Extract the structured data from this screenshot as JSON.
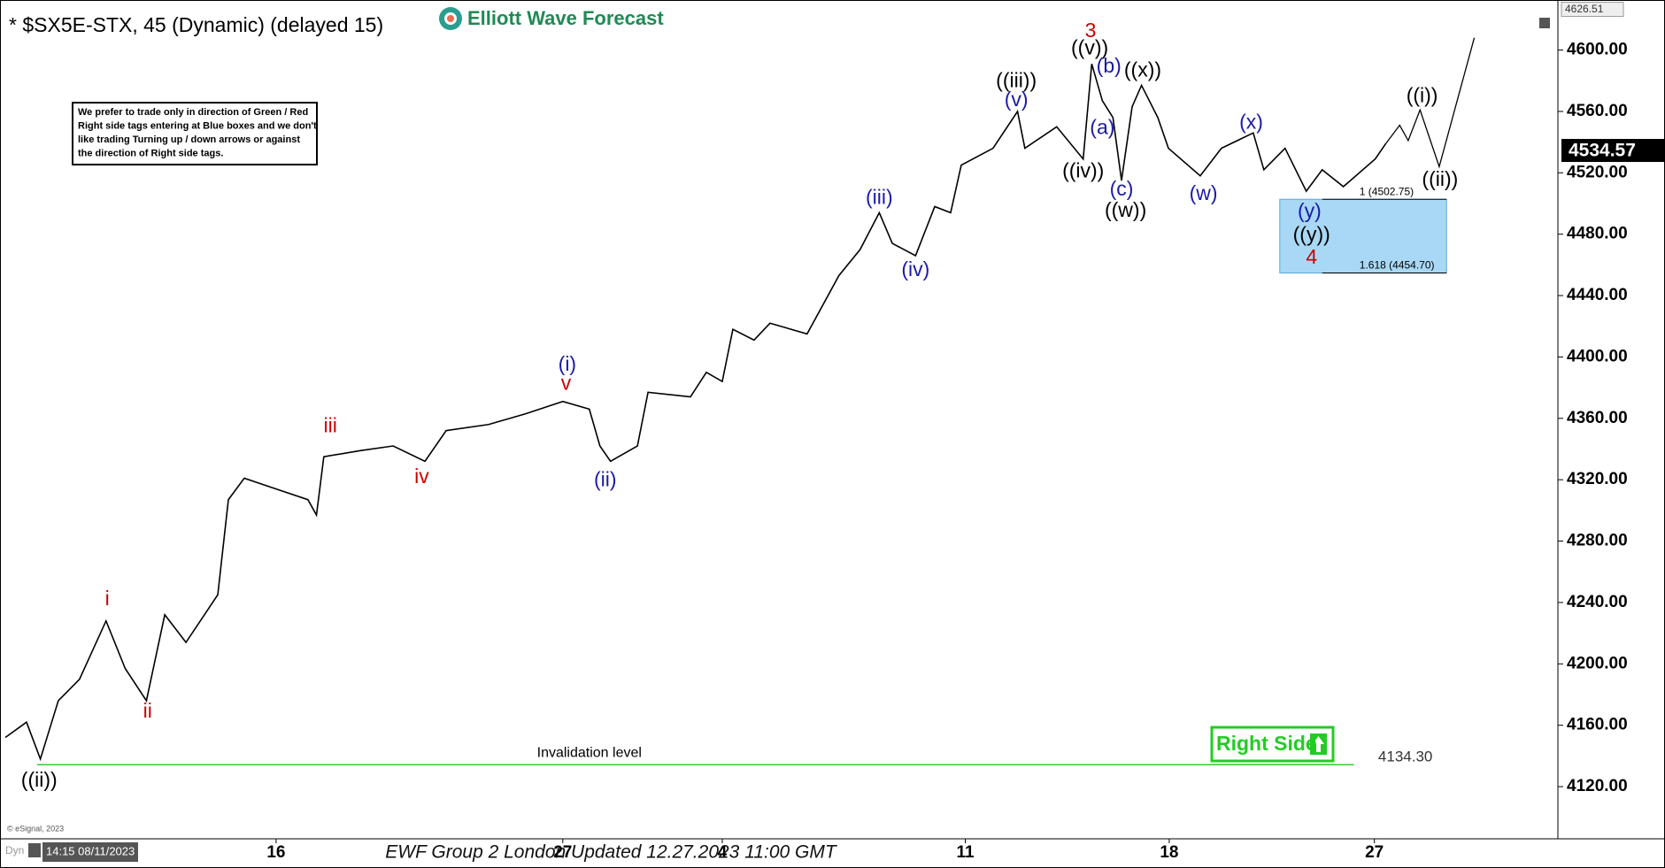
{
  "chart_data": {
    "type": "line",
    "title": "* $SX5E-STX, 45 (Dynamic) (delayed 15)",
    "logo": "Elliott Wave Forecast",
    "note": [
      "We prefer to trade only in direction of Green / Red",
      "Right side tags entering at Blue boxes and we don't",
      "like trading Turning up / down arrows or against",
      "the direction of Right side tags."
    ],
    "xlim": [
      0,
      38.2
    ],
    "ylim": [
      4086,
      4628
    ],
    "yticks": [
      {
        "value": 4120,
        "label": "4120.00"
      },
      {
        "value": 4160,
        "label": "4160.00"
      },
      {
        "value": 4200,
        "label": "4200.00"
      },
      {
        "value": 4240,
        "label": "4240.00"
      },
      {
        "value": 4280,
        "label": "4280.00"
      },
      {
        "value": 4320,
        "label": "4320.00"
      },
      {
        "value": 4360,
        "label": "4360.00"
      },
      {
        "value": 4400,
        "label": "4400.00"
      },
      {
        "value": 4440,
        "label": "4440.00"
      },
      {
        "value": 4480,
        "label": "4480.00"
      },
      {
        "value": 4520,
        "label": "4520.00"
      },
      {
        "value": 4560,
        "label": "4560.00"
      },
      {
        "value": 4600,
        "label": "4600.00"
      }
    ],
    "xticks": [
      {
        "value": 6.77,
        "label": "16"
      },
      {
        "value": 13.8,
        "label": "27"
      },
      {
        "value": 17.71,
        "label": "4"
      },
      {
        "value": 23.67,
        "label": "11"
      },
      {
        "value": 28.67,
        "label": "18"
      },
      {
        "value": 33.7,
        "label": "27"
      }
    ],
    "series": [
      {
        "name": "price",
        "color": "#000000",
        "x": [
          0.13,
          0.65,
          0.99,
          1.43,
          1.95,
          2.6,
          3.07,
          3.59,
          4.04,
          4.56,
          5.34,
          5.6,
          5.99,
          6.77,
          7.55,
          7.76,
          7.94,
          8.85,
          9.64,
          10.42,
          10.94,
          11.98,
          12.89,
          13.8,
          14.45,
          14.71,
          14.97,
          15.63,
          15.89,
          16.93,
          17.32,
          17.71,
          17.97,
          18.49,
          18.88,
          19.79,
          20.57,
          21.09,
          21.56,
          21.88,
          22.45,
          22.92,
          23.31,
          23.57,
          24.35,
          24.95,
          25.13,
          25.91,
          26.56,
          26.77,
          27.03,
          27.29,
          27.5,
          27.76,
          27.99,
          28.39,
          28.65,
          29.43,
          29.95,
          30.73,
          30.99,
          31.51,
          32.03,
          32.42,
          32.94,
          33.72,
          33.98
        ],
        "values": [
          4152,
          4162,
          4138,
          4176,
          4190,
          4228,
          4197,
          4176,
          4232,
          4214,
          4245,
          4307,
          4321,
          4314,
          4307,
          4297,
          4335,
          4339,
          4342,
          4332,
          4352,
          4356,
          4363,
          4371,
          4366,
          4342,
          4332,
          4342,
          4377,
          4374,
          4390,
          4384,
          4418,
          4411,
          4422,
          4415,
          4453,
          4470,
          4494,
          4474,
          4466,
          4498,
          4494,
          4525,
          4536,
          4560,
          4536,
          4550,
          4529,
          4591,
          4567,
          4556,
          4515,
          4563,
          4577,
          4556,
          4536,
          4518,
          4536,
          4546,
          4522,
          4536,
          4508,
          4522,
          4511,
          4529,
          4539
        ]
      },
      {
        "name": "projection",
        "color": "#000000",
        "x": [
          33.98,
          34.32,
          34.53,
          34.82,
          35.29,
          36.15
        ],
        "values": [
          4539,
          4551,
          4541,
          4561,
          4524,
          4608
        ]
      }
    ],
    "last_price": {
      "value": 4534.57,
      "label": "4534.57"
    },
    "top_price": {
      "value": 4626.51,
      "label": "4626.51"
    },
    "invalidation": {
      "label": "Invalidation level",
      "value": 4134.3,
      "value_label": "4134.30",
      "color": "#33cc33",
      "x_range": [
        0.91,
        33.2
      ]
    },
    "blue_box": {
      "x_range": [
        31.38,
        35.47
      ],
      "color": "#a8d8f5",
      "levels": [
        {
          "value": 4502.75,
          "label": "1 (4502.75)"
        },
        {
          "value": 4454.7,
          "label": "1.618 (4454.70)"
        }
      ]
    },
    "annotations": [
      {
        "text": "((ii))",
        "x": 0.96,
        "y": 4123.4,
        "color": "#000000"
      },
      {
        "text": "i",
        "x": 2.63,
        "y": 4241.7,
        "color": "#cc0000"
      },
      {
        "text": "ii",
        "x": 3.62,
        "y": 4168.4,
        "color": "#cc0000"
      },
      {
        "text": "iii",
        "x": 8.1,
        "y": 4354.4,
        "color": "#cc0000"
      },
      {
        "text": "iv",
        "x": 10.34,
        "y": 4321.2,
        "color": "#cc0000"
      },
      {
        "text": "v",
        "x": 13.88,
        "y": 4382.1,
        "color": "#cc0000"
      },
      {
        "text": "(i)",
        "x": 13.91,
        "y": 4394.6,
        "color": "#1a1aa8"
      },
      {
        "text": "(ii)",
        "x": 14.84,
        "y": 4319.2,
        "color": "#1a1aa8"
      },
      {
        "text": "(iii)",
        "x": 21.56,
        "y": 4503.2,
        "color": "#1a1aa8"
      },
      {
        "text": "(iv)",
        "x": 22.45,
        "y": 4456.1,
        "color": "#1a1aa8"
      },
      {
        "text": "((iii))",
        "x": 24.92,
        "y": 4579.2,
        "color": "#000000"
      },
      {
        "text": "(v)",
        "x": 24.92,
        "y": 4566.8,
        "color": "#1a1aa8"
      },
      {
        "text": "3",
        "x": 26.74,
        "y": 4611.8,
        "color": "#cc0000"
      },
      {
        "text": "((v))",
        "x": 26.72,
        "y": 4600.7,
        "color": "#000000"
      },
      {
        "text": "(b)",
        "x": 27.19,
        "y": 4588.9,
        "color": "#1a1aa8"
      },
      {
        "text": "((x))",
        "x": 28.02,
        "y": 4586.2,
        "color": "#000000"
      },
      {
        "text": "(a)",
        "x": 27.03,
        "y": 4548.8,
        "color": "#1a1aa8"
      },
      {
        "text": "((iv))",
        "x": 26.56,
        "y": 4520.5,
        "color": "#000000"
      },
      {
        "text": "(c)",
        "x": 27.5,
        "y": 4508.7,
        "color": "#1a1aa8"
      },
      {
        "text": "((w))",
        "x": 27.6,
        "y": 4494.9,
        "color": "#000000"
      },
      {
        "text": "(w)",
        "x": 29.51,
        "y": 4505.9,
        "color": "#1a1aa8"
      },
      {
        "text": "(x)",
        "x": 30.68,
        "y": 4552.3,
        "color": "#1a1aa8"
      },
      {
        "text": "(y)",
        "x": 32.11,
        "y": 4494.2,
        "color": "#1a1aa8"
      },
      {
        "text": "((y))",
        "x": 32.16,
        "y": 4479.0,
        "color": "#000000"
      },
      {
        "text": "4",
        "x": 32.16,
        "y": 4464.4,
        "color": "#cc0000"
      },
      {
        "text": "((i))",
        "x": 34.87,
        "y": 4569.6,
        "color": "#000000"
      },
      {
        "text": "((ii))",
        "x": 35.31,
        "y": 4514.9,
        "color": "#000000"
      }
    ],
    "right_side": "Right Side",
    "footer": "EWF Group 2 London Updated 12.27.2023 11:00 GMT",
    "copyright": "© eSignal, 2023",
    "time_label": "14:15 08/11/2023",
    "mode_label": "Dyn"
  }
}
